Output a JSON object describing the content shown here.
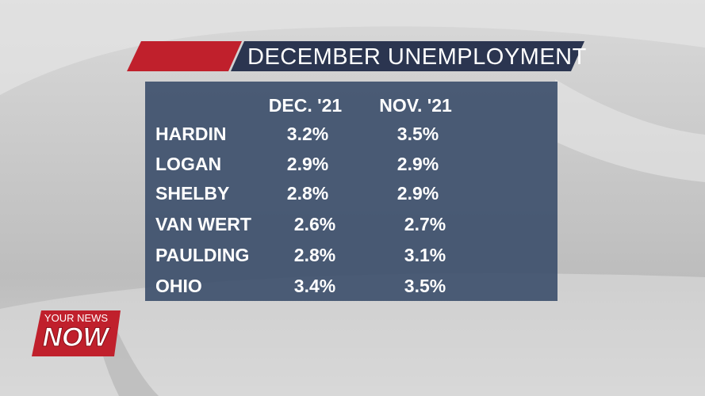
{
  "header": {
    "title": "DECEMBER UNEMPLOYMENT"
  },
  "table": {
    "columns": [
      "DEC. '21",
      "NOV. '21"
    ],
    "rows": [
      [
        "HARDIN",
        "3.2%",
        "3.5%"
      ],
      [
        "LOGAN",
        "2.9%",
        "2.9%"
      ],
      [
        "SHELBY",
        "2.8%",
        "2.9%"
      ],
      [
        "VAN WERT",
        "2.6%",
        "2.7%"
      ],
      [
        "PAULDING",
        "2.8%",
        "3.1%"
      ],
      [
        "OHIO",
        "3.4%",
        "3.5%"
      ]
    ]
  },
  "logo": {
    "top": "YOUR NEWS",
    "main": "NOW"
  }
}
